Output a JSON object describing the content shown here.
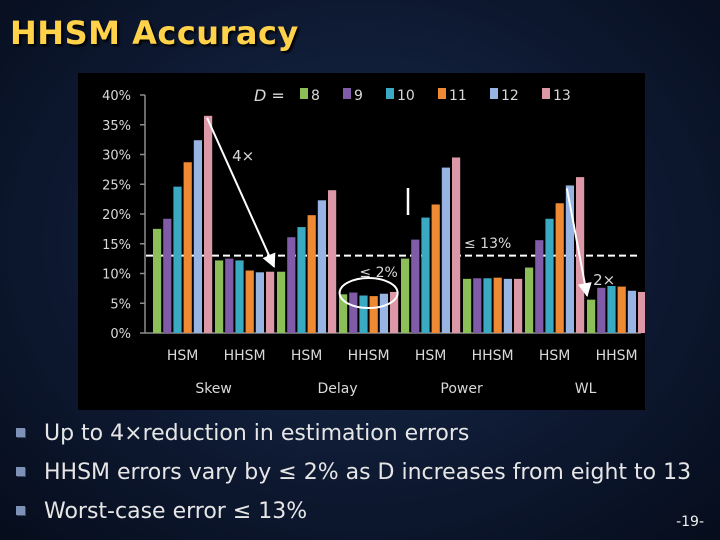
{
  "slide": {
    "title": "HHSM Accuracy",
    "page_number": "-19-"
  },
  "bullets": [
    "Up to 4×reduction in estimation errors",
    "HHSM errors vary by ≤ 2% as D increases from eight to 13",
    "Worst-case error ≤ 13%"
  ],
  "chart_data": {
    "type": "bar",
    "legend_prefix": "D =",
    "legend_position": "top",
    "series": [
      {
        "name": "8",
        "color": "#8dbf58"
      },
      {
        "name": "9",
        "color": "#7f5ba8"
      },
      {
        "name": "10",
        "color": "#39aac2"
      },
      {
        "name": "11",
        "color": "#ef8a34"
      },
      {
        "name": "12",
        "color": "#97b4e2"
      },
      {
        "name": "13",
        "color": "#dc98a6"
      }
    ],
    "groups": [
      {
        "label": "Skew",
        "bars": [
          {
            "label": "HSM",
            "values": [
              17.5,
              19.2,
              24.6,
              28.7,
              32.4,
              36.5
            ]
          },
          {
            "label": "HHSM",
            "values": [
              12.2,
              12.5,
              12.2,
              10.5,
              10.2,
              10.3
            ]
          }
        ]
      },
      {
        "label": "Delay",
        "bars": [
          {
            "label": "HSM",
            "values": [
              10.3,
              16.1,
              17.8,
              19.8,
              22.3,
              24.0
            ]
          },
          {
            "label": "HHSM",
            "values": [
              6.5,
              6.8,
              6.3,
              6.2,
              6.6,
              6.9
            ]
          }
        ]
      },
      {
        "label": "Power",
        "bars": [
          {
            "label": "HSM",
            "values": [
              12.5,
              15.7,
              19.4,
              21.6,
              27.8,
              29.5
            ]
          },
          {
            "label": "HHSM",
            "values": [
              9.1,
              9.2,
              9.2,
              9.3,
              9.1,
              9.1
            ]
          }
        ]
      },
      {
        "label": "WL",
        "bars": [
          {
            "label": "HSM",
            "values": [
              11.0,
              15.6,
              19.2,
              21.8,
              24.8,
              26.2
            ]
          },
          {
            "label": "HHSM",
            "values": [
              5.6,
              7.6,
              7.9,
              7.8,
              7.1,
              6.9
            ]
          }
        ]
      }
    ],
    "y_ticks": [
      "0%",
      "5%",
      "10%",
      "15%",
      "20%",
      "25%",
      "30%",
      "35%",
      "40%"
    ],
    "ylim": [
      0,
      40
    ],
    "reference_line": {
      "value": 13,
      "style": "dashed"
    },
    "annotations": [
      {
        "type": "arrow",
        "text": "4×",
        "from": {
          "group": 0,
          "bar": 0,
          "series": 5
        },
        "to": {
          "group": 0,
          "bar": 1,
          "series": 5
        }
      },
      {
        "type": "circle",
        "text": "≤ 2%",
        "target": {
          "group": 1,
          "bar": 1
        }
      },
      {
        "type": "arrow",
        "text": "≤ 13%",
        "target": {
          "group": 2,
          "bar": 0
        }
      },
      {
        "type": "arrow",
        "text": "2×",
        "from": {
          "group": 3,
          "bar": 0,
          "series": 4
        },
        "to": {
          "group": 3,
          "bar": 1,
          "series": 0
        }
      }
    ],
    "grid": false
  }
}
